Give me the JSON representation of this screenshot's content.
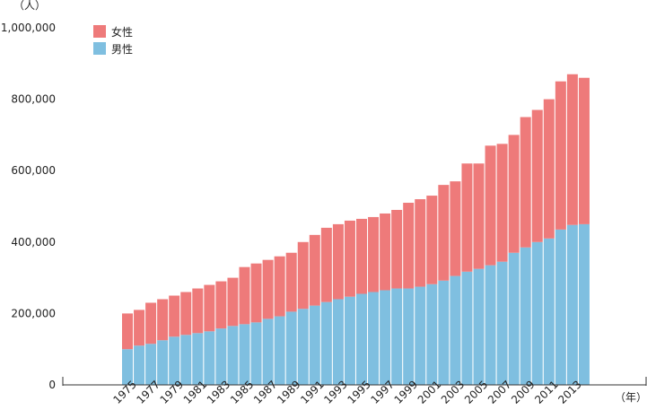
{
  "chart_data": {
    "type": "bar",
    "stacked": true,
    "y_unit_label": "（人）",
    "x_unit_label": "（年）",
    "ylim": [
      0,
      1000000
    ],
    "y_ticks": [
      0,
      200000,
      400000,
      600000,
      800000,
      1000000
    ],
    "y_tick_labels": [
      "0",
      "200,000",
      "400,000",
      "600,000",
      "800,000",
      "1,000,000"
    ],
    "grid": false,
    "legend_position": "top-left",
    "colors": {
      "male": "#7fbfe0",
      "female": "#ee7a7a",
      "axis": "#333333"
    },
    "categories": [
      "1975",
      "1976",
      "1977",
      "1978",
      "1979",
      "1980",
      "1981",
      "1982",
      "1983",
      "1984",
      "1985",
      "1986",
      "1987",
      "1988",
      "1989",
      "1990",
      "1991",
      "1992",
      "1993",
      "1994",
      "1995",
      "1996",
      "1997",
      "1998",
      "1999",
      "2000",
      "2001",
      "2002",
      "2003",
      "2004",
      "2005",
      "2006",
      "2007",
      "2008",
      "2009",
      "2010",
      "2011",
      "2012",
      "2013",
      "2014"
    ],
    "x_tick_labels": [
      "1975",
      "1977",
      "1979",
      "1981",
      "1983",
      "1985",
      "1987",
      "1989",
      "1991",
      "1993",
      "1995",
      "1997",
      "1999",
      "2001",
      "2003",
      "2005",
      "2007",
      "2009",
      "2011",
      "2013"
    ],
    "series": [
      {
        "name": "男性",
        "key": "male",
        "values": [
          100000,
          110000,
          115000,
          125000,
          135000,
          140000,
          145000,
          150000,
          158000,
          165000,
          170000,
          175000,
          185000,
          192000,
          205000,
          213000,
          222000,
          232000,
          240000,
          247000,
          255000,
          260000,
          265000,
          270000,
          270000,
          275000,
          282000,
          292000,
          305000,
          317000,
          325000,
          335000,
          345000,
          370000,
          385000,
          400000,
          410000,
          435000,
          448000,
          450000
        ]
      },
      {
        "name": "女性",
        "key": "female",
        "values": [
          100000,
          100000,
          115000,
          115000,
          115000,
          120000,
          125000,
          130000,
          132000,
          135000,
          160000,
          165000,
          165000,
          168000,
          165000,
          187000,
          198000,
          208000,
          210000,
          213000,
          210000,
          210000,
          215000,
          220000,
          240000,
          245000,
          248000,
          268000,
          265000,
          303000,
          295000,
          335000,
          330000,
          330000,
          365000,
          370000,
          390000,
          415000,
          422000,
          410000
        ]
      }
    ]
  }
}
